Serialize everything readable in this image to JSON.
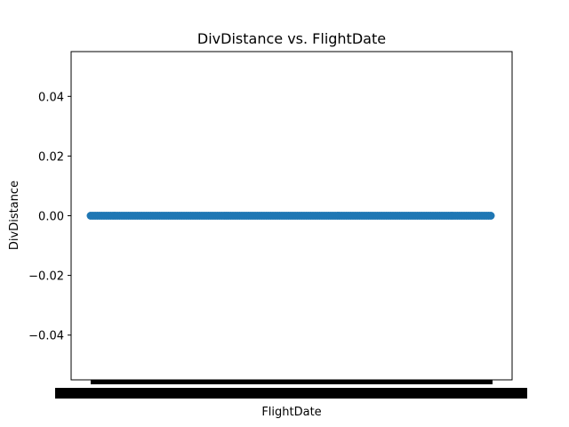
{
  "chart_data": {
    "type": "scatter",
    "title": "DivDistance vs. FlightDate",
    "xlabel": "FlightDate",
    "ylabel": "DivDistance",
    "ylim": [
      -0.055,
      0.055
    ],
    "y_ticks": [
      {
        "value": 0.04,
        "label": "0.04"
      },
      {
        "value": 0.02,
        "label": "0.02"
      },
      {
        "value": 0.0,
        "label": "0.00"
      },
      {
        "value": -0.02,
        "label": "−0.02"
      },
      {
        "value": -0.04,
        "label": "−0.04"
      }
    ],
    "x_tick_labels_legible": false,
    "series_color": "#1f77b4",
    "points_y": 0,
    "grid": false
  }
}
